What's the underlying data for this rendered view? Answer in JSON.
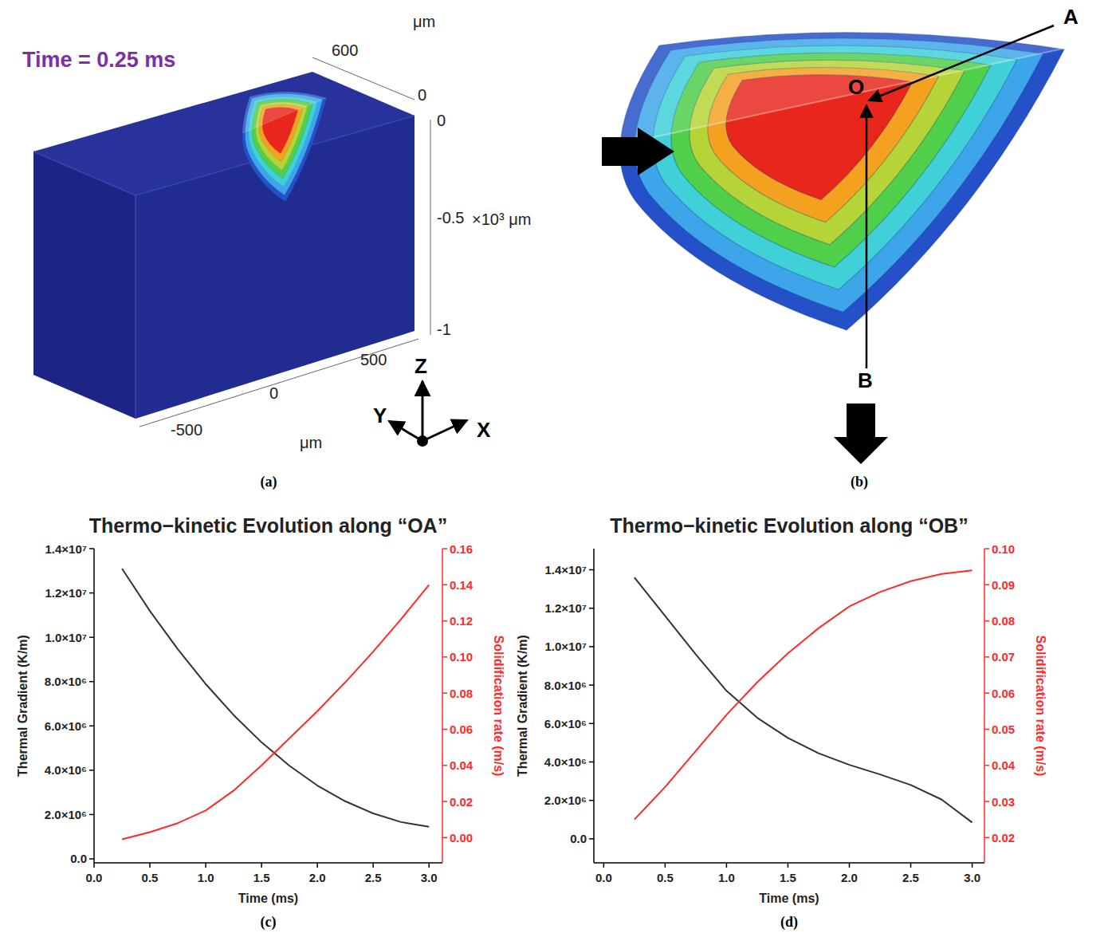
{
  "panel_a": {
    "label": "(a)",
    "time": "Time = 0.25 ms",
    "y_unit": "μm",
    "y_ticks": [
      "600",
      "0"
    ],
    "z_ticks": [
      "0",
      "-0.5",
      "-1"
    ],
    "z_unit": "×10³ μm",
    "x_ticks": [
      "-500",
      "0",
      "500"
    ],
    "x_unit": "μm",
    "axes": [
      "Y",
      "Z",
      "X"
    ]
  },
  "panel_b": {
    "label": "(b)",
    "points": [
      "O",
      "A",
      "B"
    ]
  },
  "chart_data": [
    {
      "type": "line",
      "label": "(c)",
      "title": "Thermo−kinetic Evolution along “OA”",
      "xlabel": "Time (ms)",
      "ylabel": "Thermal Gradient (K/m)",
      "y2label": "Solidification rate (m/s)",
      "grid": false,
      "x": [
        0.25,
        0.5,
        0.75,
        1,
        1.25,
        1.5,
        1.75,
        2,
        2.25,
        2.5,
        2.75,
        3
      ],
      "xlim": [
        0,
        3.12
      ],
      "xticks": [
        {
          "value": 0,
          "label": "0.0"
        },
        0.5,
        {
          "value": 1,
          "label": "1.0"
        },
        1.5,
        {
          "value": 2,
          "label": "2.0"
        },
        2.5,
        {
          "value": 3,
          "label": "3.0"
        }
      ],
      "ylim": [
        -180000,
        14000000
      ],
      "yticks": [
        {
          "value": 0,
          "label": "0.0"
        },
        {
          "value": 2000000,
          "label": "2.0×10⁶"
        },
        {
          "value": 4000000,
          "label": "4.0×10⁶"
        },
        {
          "value": 6000000,
          "label": "6.0×10⁶"
        },
        {
          "value": 8000000,
          "label": "8.0×10⁶"
        },
        {
          "value": 10000000,
          "label": "1.0×10⁷"
        },
        {
          "value": 12000000,
          "label": "1.2×10⁷"
        },
        {
          "value": 14000000,
          "label": "1.4×10⁷"
        }
      ],
      "y2lim": [
        -0.014,
        0.16
      ],
      "y2ticks": [
        {
          "value": 0,
          "label": "0.00"
        },
        0.02,
        0.04,
        0.06,
        0.08,
        {
          "value": 0.1,
          "label": "0.10"
        },
        0.12,
        0.14,
        0.16
      ],
      "series": [
        {
          "color": "#333333",
          "line_style": "solid",
          "values": [
            13100000,
            11190000,
            9460000,
            7890000,
            6490000,
            5260000,
            4200000,
            3310000,
            2600000,
            2050000,
            1660000,
            1450000
          ]
        },
        {
          "color": "#ff2a2a",
          "line_style": "solid",
          "axis": "y2",
          "values": [
            -0.001,
            0.003,
            0.008,
            0.015,
            0.026,
            0.04,
            0.055,
            0.07,
            0.086,
            0.103,
            0.121,
            0.14
          ]
        }
      ]
    },
    {
      "type": "line",
      "label": "(d)",
      "title": "Thermo−kinetic Evolution along “OB”",
      "xlabel": "Time (ms)",
      "ylabel": "Thermal Gradient (K/m)",
      "y2label": "Solidification rate (m/s)",
      "grid": false,
      "x": [
        0.25,
        0.5,
        0.75,
        1,
        1.25,
        1.5,
        1.75,
        2,
        2.25,
        2.5,
        2.75,
        3
      ],
      "xlim": [
        -0.08,
        3.1
      ],
      "xticks": [
        {
          "value": 0,
          "label": "0.0"
        },
        0.5,
        {
          "value": 1,
          "label": "1.0"
        },
        1.5,
        {
          "value": 2,
          "label": "2.0"
        },
        2.5,
        {
          "value": 3,
          "label": "3.0"
        }
      ],
      "ylim": [
        -1250000,
        15100000
      ],
      "yticks": [
        {
          "value": 0,
          "label": "0.0"
        },
        {
          "value": 2000000,
          "label": "2.0×10⁶"
        },
        {
          "value": 4000000,
          "label": "4.0×10⁶"
        },
        {
          "value": 6000000,
          "label": "6.0×10⁶"
        },
        {
          "value": 8000000,
          "label": "8.0×10⁶"
        },
        {
          "value": 10000000,
          "label": "1.0×10⁷"
        },
        {
          "value": 12000000,
          "label": "1.2×10⁷"
        },
        {
          "value": 14000000,
          "label": "1.4×10⁷"
        }
      ],
      "y2lim": [
        0.013,
        0.1
      ],
      "y2ticks": [
        0.02,
        0.03,
        0.04,
        0.05,
        0.06,
        0.07,
        0.08,
        0.09,
        {
          "value": 0.1,
          "label": "0.10"
        }
      ],
      "series": [
        {
          "color": "#333333",
          "line_style": "solid",
          "values": [
            13600000,
            11600000,
            9600000,
            7700000,
            6300000,
            5250000,
            4450000,
            3850000,
            3350000,
            2800000,
            2050000,
            850000
          ]
        },
        {
          "color": "#ff2a2a",
          "line_style": "solid",
          "axis": "y2",
          "values": [
            0.025,
            0.034,
            0.044,
            0.054,
            0.063,
            0.071,
            0.078,
            0.084,
            0.088,
            0.091,
            0.093,
            0.094
          ]
        }
      ]
    }
  ]
}
